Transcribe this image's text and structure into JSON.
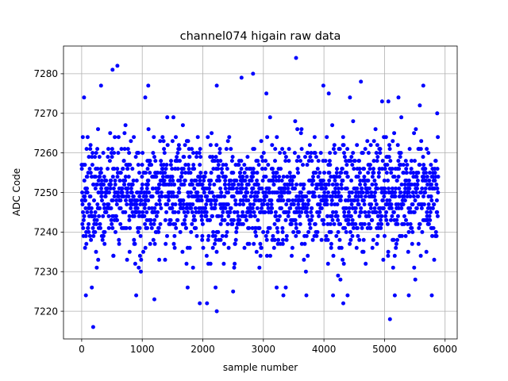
{
  "chart_data": {
    "type": "scatter",
    "title": "channel074 higain raw data",
    "xlabel": "sample number",
    "ylabel": "ADC Code",
    "xlim": [
      -300,
      6200
    ],
    "ylim": [
      7213,
      7287
    ],
    "xticks": [
      0,
      1000,
      2000,
      3000,
      4000,
      5000,
      6000
    ],
    "yticks": [
      7220,
      7230,
      7240,
      7250,
      7260,
      7270,
      7280
    ],
    "grid": true,
    "marker_color": "#0000ff",
    "n_samples": 5888,
    "y_center": 7249,
    "y_spread_sd": 7,
    "notable_points": [
      {
        "x": 190,
        "y": 7216
      },
      {
        "x": 510,
        "y": 7281
      },
      {
        "x": 590,
        "y": 7282
      },
      {
        "x": 320,
        "y": 7277
      },
      {
        "x": 1100,
        "y": 7277
      },
      {
        "x": 2230,
        "y": 7220
      },
      {
        "x": 2230,
        "y": 7277
      },
      {
        "x": 2640,
        "y": 7279
      },
      {
        "x": 2830,
        "y": 7280
      },
      {
        "x": 3540,
        "y": 7284
      },
      {
        "x": 3330,
        "y": 7224
      },
      {
        "x": 4320,
        "y": 7222
      },
      {
        "x": 4610,
        "y": 7278
      },
      {
        "x": 5090,
        "y": 7218
      },
      {
        "x": 5640,
        "y": 7277
      },
      {
        "x": 1200,
        "y": 7223
      },
      {
        "x": 1950,
        "y": 7222
      },
      {
        "x": 2070,
        "y": 7222
      },
      {
        "x": 900,
        "y": 7224
      },
      {
        "x": 70,
        "y": 7224
      },
      {
        "x": 5170,
        "y": 7224
      },
      {
        "x": 5400,
        "y": 7224
      },
      {
        "x": 5780,
        "y": 7224
      },
      {
        "x": 3710,
        "y": 7224
      },
      {
        "x": 4150,
        "y": 7224
      },
      {
        "x": 4390,
        "y": 7224
      },
      {
        "x": 3370,
        "y": 7226
      },
      {
        "x": 2500,
        "y": 7225
      },
      {
        "x": 1750,
        "y": 7226
      },
      {
        "x": 40,
        "y": 7274
      },
      {
        "x": 1050,
        "y": 7274
      },
      {
        "x": 3050,
        "y": 7275
      },
      {
        "x": 3990,
        "y": 7277
      },
      {
        "x": 4080,
        "y": 7275
      },
      {
        "x": 4430,
        "y": 7274
      },
      {
        "x": 4960,
        "y": 7273
      },
      {
        "x": 5230,
        "y": 7274
      },
      {
        "x": 5870,
        "y": 7270
      }
    ]
  }
}
